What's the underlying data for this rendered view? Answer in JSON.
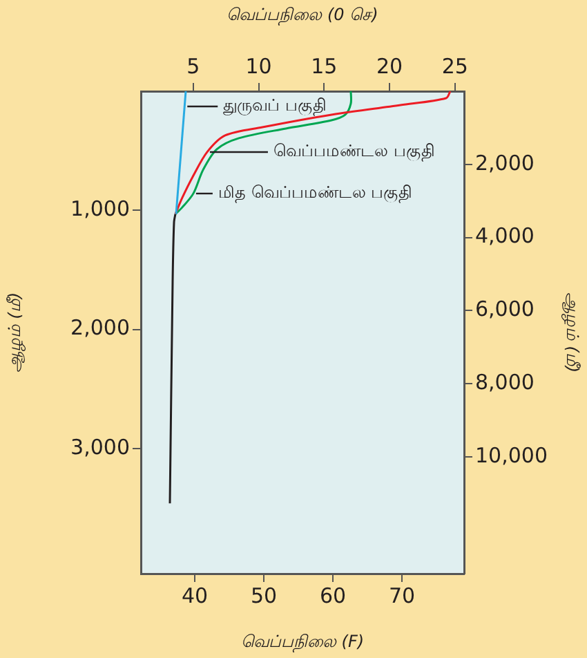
{
  "chart_data": {
    "type": "line",
    "xlabel": "வெப்பநிலை (F)",
    "x2label": "வெப்பநிலை (0 செ)",
    "ylabel": "ஆழம் (மீ)",
    "y2label": "ஆழம் (மீ)",
    "xlim": [
      32.2,
      79
    ],
    "xticks": [
      40,
      50,
      60,
      70
    ],
    "x2lim": [
      1.0,
      25.7
    ],
    "x2ticks": [
      5,
      10,
      15,
      20,
      25
    ],
    "ylim": [
      4050,
      0
    ],
    "yticks": [
      {
        "value": 1000,
        "label": "1,000"
      },
      {
        "value": 2000,
        "label": "2,000"
      },
      {
        "value": 3000,
        "label": "3,000"
      }
    ],
    "y2lim": [
      13200,
      0
    ],
    "y2ticks": [
      {
        "value": 2000,
        "label": "2,000"
      },
      {
        "value": 4000,
        "label": "4,000"
      },
      {
        "value": 6000,
        "label": "6,000"
      },
      {
        "value": 8000,
        "label": "8,000"
      },
      {
        "value": 10000,
        "label": "10,000"
      }
    ],
    "grid": false,
    "legend": false,
    "marker": "none",
    "series": [
      {
        "name": "துருவப் பகுதி",
        "color": "#29abe2",
        "x": [
          38.7,
          37.3
        ],
        "values": [
          0,
          1030
        ]
      },
      {
        "name": "வெப்பமண்டல பகுதி",
        "color": "#ed1c24",
        "x": [
          77.0,
          76.4,
          69.8,
          59.8,
          49.8,
          44.4,
          41.8,
          39.8,
          38.2,
          37.2
        ],
        "values": [
          0,
          58,
          116,
          197,
          302,
          371,
          510,
          708,
          893,
          1030
        ]
      },
      {
        "name": "மித வெப்பமண்டல பகுதி",
        "color": "#00a651",
        "x": [
          62.6,
          62.6,
          61.8,
          59.8,
          53.2,
          46.4,
          43.2,
          41.2,
          39.8,
          38.2,
          37.2
        ],
        "values": [
          0,
          104,
          197,
          244,
          313,
          394,
          487,
          661,
          858,
          974,
          1030
        ]
      },
      {
        "color": "#231f20",
        "x": [
          37.2,
          37.0,
          36.8,
          36.4
        ],
        "values": [
          1030,
          1100,
          1600,
          3460
        ]
      }
    ]
  }
}
